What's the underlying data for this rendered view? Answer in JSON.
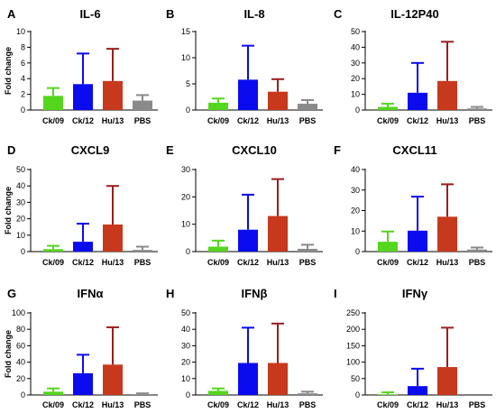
{
  "categories": [
    "Ck/09",
    "Ck/12",
    "Hu/13",
    "PBS"
  ],
  "series_colors": [
    "#55d61e",
    "#0b0bf0",
    "#c8381c",
    "#8a8a8a"
  ],
  "error_colors": [
    "#55d61e",
    "#0b0bf0",
    "#9b1d1d",
    "#8a8a8a"
  ],
  "ylabel": "Fold change",
  "chart_data": [
    {
      "type": "bar",
      "letter": "A",
      "title": "IL-6",
      "ylim": [
        0,
        10
      ],
      "ticks": [
        0,
        2,
        4,
        6,
        8,
        10
      ],
      "categories": [
        "Ck/09",
        "Ck/12",
        "Hu/13",
        "PBS"
      ],
      "values": [
        1.8,
        3.3,
        3.7,
        1.2
      ],
      "errors": [
        2.8,
        7.2,
        7.8,
        1.9
      ],
      "ylabel": "Fold change"
    },
    {
      "type": "bar",
      "letter": "B",
      "title": "IL-8",
      "ylim": [
        0,
        15
      ],
      "ticks": [
        0,
        5,
        10,
        15
      ],
      "categories": [
        "Ck/09",
        "Ck/12",
        "Hu/13",
        "PBS"
      ],
      "values": [
        1.4,
        5.8,
        3.5,
        1.2
      ],
      "errors": [
        2.2,
        12.3,
        5.9,
        1.9
      ],
      "ylabel": ""
    },
    {
      "type": "bar",
      "letter": "C",
      "title": "IL-12P40",
      "ylim": [
        0,
        50
      ],
      "ticks": [
        0,
        10,
        20,
        30,
        40,
        50
      ],
      "categories": [
        "Ck/09",
        "Ck/12",
        "Hu/13",
        "PBS"
      ],
      "values": [
        2.0,
        11.0,
        18.5,
        1.0
      ],
      "errors": [
        4.0,
        30.0,
        43.5,
        2.0
      ],
      "ylabel": ""
    },
    {
      "type": "bar",
      "letter": "D",
      "title": "CXCL9",
      "ylim": [
        0,
        50
      ],
      "ticks": [
        0,
        10,
        20,
        30,
        40,
        50
      ],
      "categories": [
        "Ck/09",
        "Ck/12",
        "Hu/13",
        "PBS"
      ],
      "values": [
        1.5,
        6.0,
        16.5,
        1.0
      ],
      "errors": [
        3.5,
        17.0,
        40.0,
        3.0
      ],
      "ylabel": "Fold change"
    },
    {
      "type": "bar",
      "letter": "E",
      "title": "CXCL10",
      "ylim": [
        0,
        30
      ],
      "ticks": [
        0,
        10,
        20,
        30
      ],
      "categories": [
        "Ck/09",
        "Ck/12",
        "Hu/13",
        "PBS"
      ],
      "values": [
        1.8,
        8.0,
        13.0,
        1.0
      ],
      "errors": [
        4.0,
        20.8,
        26.5,
        2.5
      ],
      "ylabel": ""
    },
    {
      "type": "bar",
      "letter": "F",
      "title": "CXCL11",
      "ylim": [
        0,
        40
      ],
      "ticks": [
        0,
        10,
        20,
        30,
        40
      ],
      "categories": [
        "Ck/09",
        "Ck/12",
        "Hu/13",
        "PBS"
      ],
      "values": [
        4.8,
        10.2,
        17.0,
        1.0
      ],
      "errors": [
        9.8,
        26.8,
        32.8,
        2.0
      ],
      "ylabel": ""
    },
    {
      "type": "bar",
      "letter": "G",
      "title": "IFNα",
      "ylim": [
        0,
        100
      ],
      "ticks": [
        0,
        20,
        40,
        60,
        80,
        100
      ],
      "categories": [
        "Ck/09",
        "Ck/12",
        "Hu/13",
        "PBS"
      ],
      "values": [
        4.0,
        26.5,
        37.0,
        1.0
      ],
      "errors": [
        8.0,
        49.0,
        82.5,
        2.0
      ],
      "ylabel": "Fold change"
    },
    {
      "type": "bar",
      "letter": "H",
      "title": "IFNβ",
      "ylim": [
        0,
        50
      ],
      "ticks": [
        0,
        10,
        20,
        30,
        40,
        50
      ],
      "categories": [
        "Ck/09",
        "Ck/12",
        "Hu/13",
        "PBS"
      ],
      "values": [
        2.5,
        19.5,
        19.5,
        1.0
      ],
      "errors": [
        4.0,
        41.0,
        43.5,
        2.0
      ],
      "ylabel": ""
    },
    {
      "type": "bar",
      "letter": "I",
      "title": "IFNγ",
      "ylim": [
        0,
        250
      ],
      "ticks": [
        0,
        50,
        100,
        150,
        200,
        250
      ],
      "categories": [
        "Ck/09",
        "Ck/12",
        "Hu/13",
        "PBS"
      ],
      "values": [
        2.0,
        27.0,
        85.0,
        0.0
      ],
      "errors": [
        8.0,
        80.0,
        205.0,
        0.0
      ],
      "ylabel": ""
    }
  ]
}
